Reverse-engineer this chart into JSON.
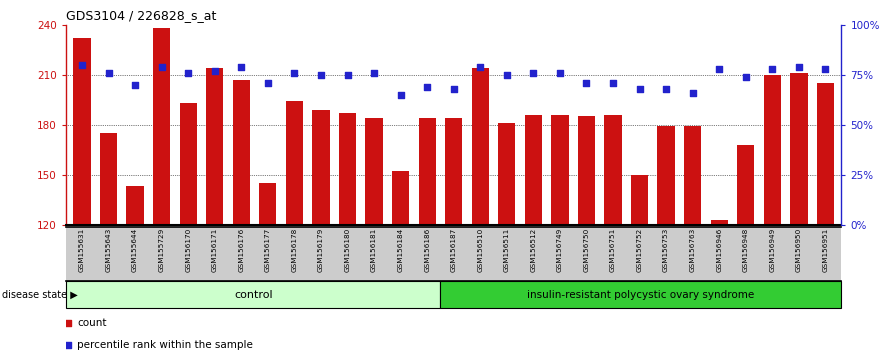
{
  "title": "GDS3104 / 226828_s_at",
  "categories": [
    "GSM155631",
    "GSM155643",
    "GSM155644",
    "GSM155729",
    "GSM156170",
    "GSM156171",
    "GSM156176",
    "GSM156177",
    "GSM156178",
    "GSM156179",
    "GSM156180",
    "GSM156181",
    "GSM156184",
    "GSM156186",
    "GSM156187",
    "GSM156510",
    "GSM156511",
    "GSM156512",
    "GSM156749",
    "GSM156750",
    "GSM156751",
    "GSM156752",
    "GSM156753",
    "GSM156763",
    "GSM156946",
    "GSM156948",
    "GSM156949",
    "GSM156950",
    "GSM156951"
  ],
  "bar_values": [
    232,
    175,
    143,
    238,
    193,
    214,
    207,
    145,
    194,
    189,
    187,
    184,
    152,
    184,
    184,
    214,
    181,
    186,
    186,
    185,
    186,
    150,
    179,
    179,
    123,
    168,
    210,
    211,
    205
  ],
  "percentile_values": [
    80,
    76,
    70,
    79,
    76,
    77,
    79,
    71,
    76,
    75,
    75,
    76,
    65,
    69,
    68,
    79,
    75,
    76,
    76,
    71,
    71,
    68,
    68,
    66,
    78,
    74,
    78,
    79,
    78
  ],
  "n_control": 14,
  "bar_color": "#CC1111",
  "dot_color": "#2222CC",
  "ylim_left": [
    120,
    240
  ],
  "ylim_right": [
    0,
    100
  ],
  "yticks_left": [
    120,
    150,
    180,
    210,
    240
  ],
  "yticks_right": [
    0,
    25,
    50,
    75,
    100
  ],
  "ytick_labels_right": [
    "0%",
    "25%",
    "50%",
    "75%",
    "100%"
  ],
  "grid_values": [
    150,
    180,
    210
  ],
  "control_label": "control",
  "case_label": "insulin-resistant polycystic ovary syndrome",
  "disease_state_label": "disease state",
  "legend_count_label": "count",
  "legend_percentile_label": "percentile rank within the sample",
  "control_bg": "#ccffcc",
  "case_bg": "#33cc33",
  "xlabel_bg": "#cccccc"
}
